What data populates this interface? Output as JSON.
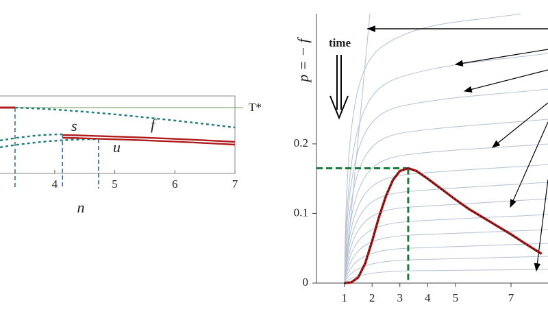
{
  "chart_data": [
    {
      "type": "line",
      "x_label": "n",
      "xlim": [
        3.09,
        7
      ],
      "xticks": [
        4,
        5,
        6,
        7
      ],
      "annotations": [
        "T*",
        "f",
        "s",
        "u"
      ],
      "markers_x": [
        3.34,
        4.13,
        4.73
      ]
    },
    {
      "type": "line",
      "y_label": "p = − f",
      "annotations": [
        "time"
      ],
      "xlim": [
        0,
        8.33
      ],
      "xticks": [
        1,
        2,
        3,
        4,
        5,
        7
      ],
      "ylim": [
        0,
        0.387
      ],
      "yticks": [
        0,
        0.1,
        0.2
      ],
      "series": [
        {
          "color": "#b01c1c",
          "x": [
            1,
            1.25,
            1.5,
            1.75,
            2,
            2.25,
            2.5,
            2.75,
            3,
            3.3,
            3.6,
            4,
            4.5,
            5,
            5.5,
            6,
            6.5,
            7,
            7.5,
            8.1
          ],
          "values": [
            0,
            0.001,
            0.008,
            0.028,
            0.06,
            0.095,
            0.125,
            0.148,
            0.161,
            0.165,
            0.161,
            0.15,
            0.135,
            0.12,
            0.106,
            0.094,
            0.082,
            0.07,
            0.057,
            0.042
          ]
        }
      ],
      "peak": {
        "x": 3.3,
        "y": 0.165
      },
      "peak_color": "#1a7a3a"
    }
  ]
}
